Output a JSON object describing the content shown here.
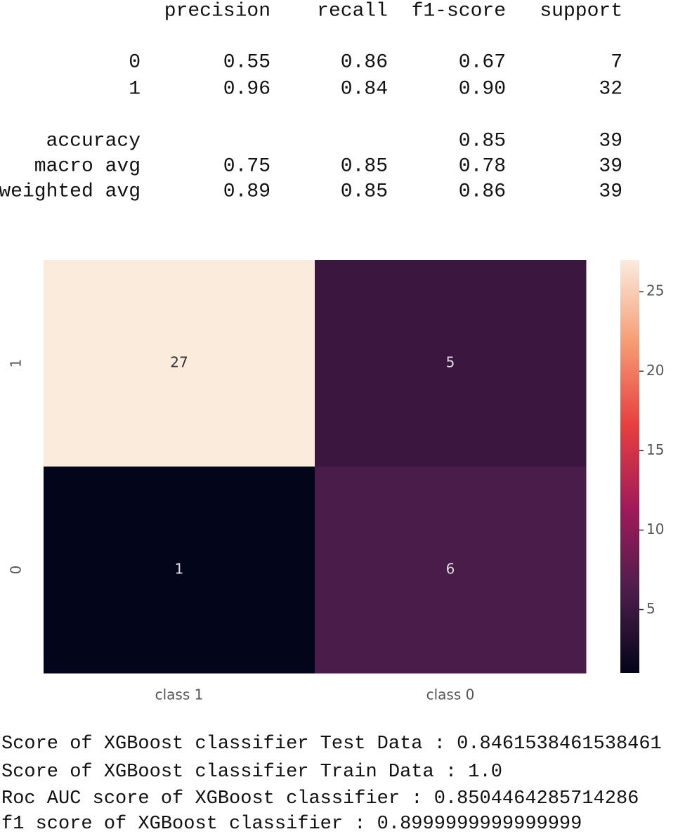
{
  "report": {
    "header": [
      "precision",
      "recall",
      "f1-score",
      "support"
    ],
    "rows": [
      {
        "label": "0",
        "precision": "0.55",
        "recall": "0.86",
        "f1": "0.67",
        "support": "7"
      },
      {
        "label": "1",
        "precision": "0.96",
        "recall": "0.84",
        "f1": "0.90",
        "support": "32"
      },
      {
        "label": "accuracy",
        "f1": "0.85",
        "support": "39"
      },
      {
        "label": "macro avg",
        "precision": "0.75",
        "recall": "0.85",
        "f1": "0.78",
        "support": "39"
      },
      {
        "label": "weighted avg",
        "precision": "0.89",
        "recall": "0.85",
        "f1": "0.86",
        "support": "39"
      }
    ]
  },
  "chart_data": {
    "type": "heatmap",
    "x": [
      "class 1",
      "class 0"
    ],
    "y": [
      "1",
      "0"
    ],
    "values": [
      [
        27,
        5
      ],
      [
        1,
        6
      ]
    ],
    "clim": [
      1,
      27
    ],
    "colorbar_ticks": [
      5,
      10,
      15,
      20,
      25
    ],
    "colormap": [
      "#03051a",
      "#4c1d4b",
      "#a11a5b",
      "#e83f3f",
      "#f69c73",
      "#faebdd"
    ]
  },
  "output": [
    "Score of XGBoost classifier Test Data : 0.8461538461538461",
    "Score of XGBoost classifier Train Data : 1.0",
    "Roc AUC score of XGBoost classifier : 0.8504464285714286",
    "f1 score of XGBoost classifier : 0.8999999999999999"
  ]
}
